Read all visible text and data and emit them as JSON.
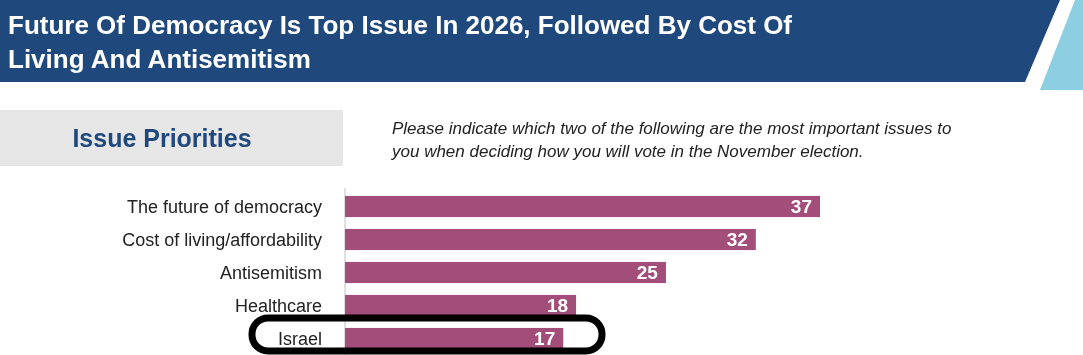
{
  "chart_data": {
    "type": "bar",
    "orientation": "horizontal",
    "title": "Future Of Democracy Is Top Issue In 2026, Followed By Cost Of Living And Antisemitism",
    "subtitle": "Issue Priorities",
    "annotations": [
      "Please indicate which two of the following are the most important issues to you when deciding how you will vote in the November election."
    ],
    "categories": [
      "The future of democracy",
      "Cost of living/affordability",
      "Antisemitism",
      "Healthcare",
      "Israel"
    ],
    "values": [
      37,
      32,
      25,
      18,
      17
    ],
    "color": "#a24d7a",
    "data_labels": true
  }
}
